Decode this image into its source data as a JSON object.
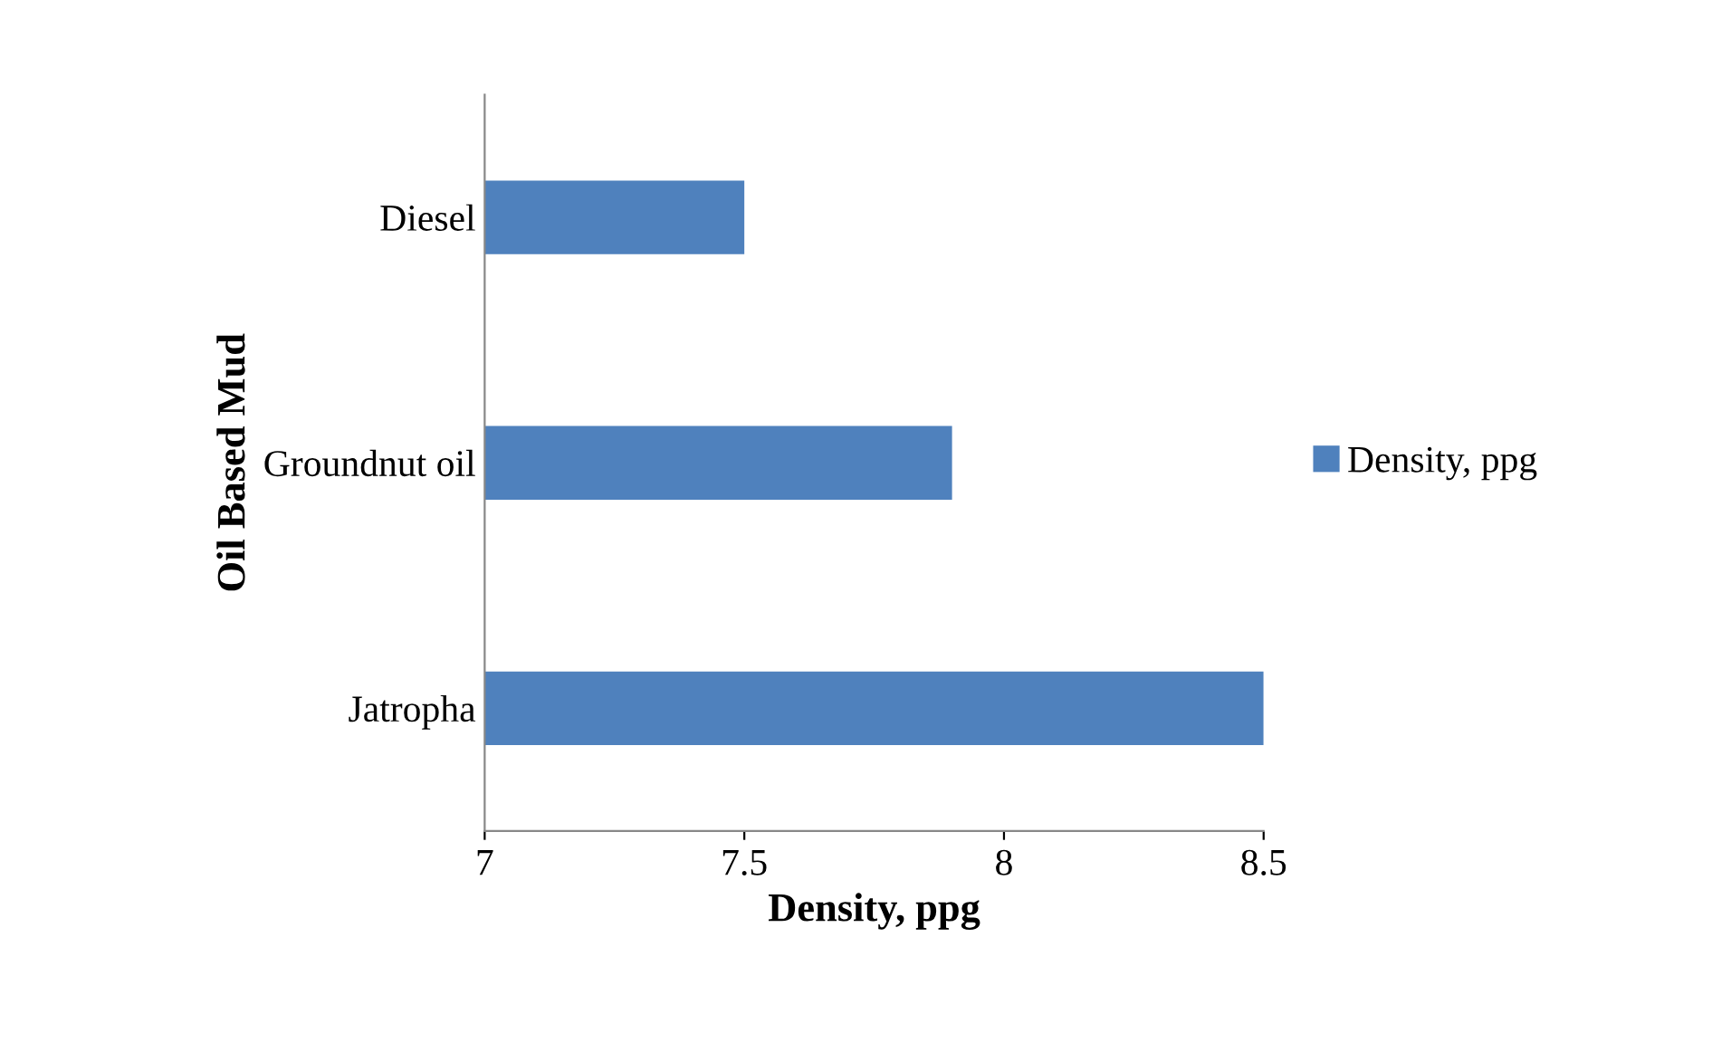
{
  "chart_data": {
    "type": "bar",
    "orientation": "horizontal",
    "xlabel": "Density, ppg",
    "ylabel": "Oil Based Mud",
    "categories": [
      "Diesel",
      "Groundnut oil",
      "Jatropha"
    ],
    "series": [
      {
        "name": "Density, ppg",
        "color": "#4f81bd",
        "values": [
          7.5,
          7.9,
          8.5
        ]
      }
    ],
    "xlim": [
      7,
      8.5
    ],
    "xticks": [
      7,
      7.5,
      8,
      8.5
    ],
    "grid": false,
    "legend": "right"
  }
}
